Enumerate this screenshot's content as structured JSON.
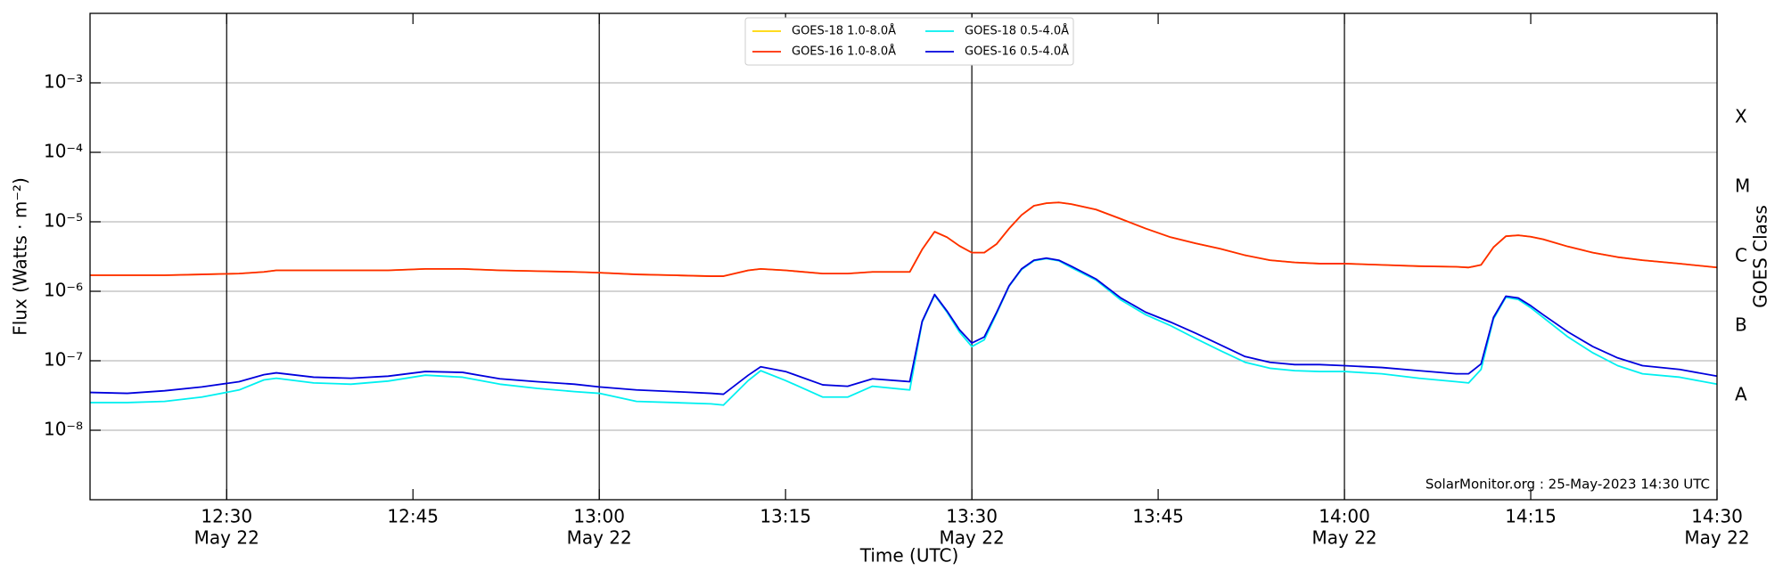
{
  "chart_data": {
    "type": "line",
    "xlabel": "Time (UTC)",
    "ylabel": "Flux (Watts · m⁻²)",
    "y2label": "GOES Class",
    "annotation": "SolarMonitor.org : 25-May-2023 14:30 UTC",
    "ylog": true,
    "grid": true,
    "legend": "top-center",
    "xlim": [
      "12:19",
      "14:30"
    ],
    "xticks": [
      "12:30",
      "12:45",
      "13:00",
      "13:15",
      "13:30",
      "13:45",
      "14:00",
      "14:15",
      "14:30"
    ],
    "xtick_dates": [
      "May 22",
      null,
      "May 22",
      null,
      "May 22",
      null,
      "May 22",
      null,
      "May 22"
    ],
    "vlines": [
      "12:30",
      "13:00",
      "13:30",
      "14:00"
    ],
    "ylim": [
      1e-09,
      0.01
    ],
    "yticks": [
      {
        "value": 1e-08,
        "label": "10⁻⁸"
      },
      {
        "value": 1e-07,
        "label": "10⁻⁷"
      },
      {
        "value": 1e-06,
        "label": "10⁻⁶"
      },
      {
        "value": 1e-05,
        "label": "10⁻⁵"
      },
      {
        "value": 0.0001,
        "label": "10⁻⁴"
      },
      {
        "value": 0.001,
        "label": "10⁻³"
      }
    ],
    "y2lim": [
      1e-09,
      0.01
    ],
    "y2ticks": [
      {
        "value": 3.16e-08,
        "label": "A"
      },
      {
        "value": 3.16e-07,
        "label": "B"
      },
      {
        "value": 3.16e-06,
        "label": "C"
      },
      {
        "value": 3.16e-05,
        "label": "M"
      },
      {
        "value": 0.000316,
        "label": "X"
      }
    ],
    "x": [
      "12:19",
      "12:22",
      "12:25",
      "12:28",
      "12:31",
      "12:33",
      "12:34",
      "12:37",
      "12:40",
      "12:43",
      "12:46",
      "12:49",
      "12:52",
      "12:55",
      "12:58",
      "13:00",
      "13:03",
      "13:06",
      "13:09",
      "13:10",
      "13:12",
      "13:13",
      "13:15",
      "13:18",
      "13:20",
      "13:22",
      "13:25",
      "13:26",
      "13:27",
      "13:28",
      "13:29",
      "13:30",
      "13:31",
      "13:32",
      "13:33",
      "13:34",
      "13:35",
      "13:36",
      "13:37",
      "13:38",
      "13:40",
      "13:42",
      "13:44",
      "13:46",
      "13:48",
      "13:50",
      "13:52",
      "13:54",
      "13:56",
      "13:58",
      "14:00",
      "14:03",
      "14:06",
      "14:09",
      "14:10",
      "14:11",
      "14:12",
      "14:13",
      "14:14",
      "14:15",
      "14:16",
      "14:18",
      "14:20",
      "14:22",
      "14:24",
      "14:27",
      "14:30"
    ],
    "series": [
      {
        "name": "GOES-18 1.0-8.0Å",
        "color": "#ffd700",
        "values": [
          1.7e-06,
          1.7e-06,
          1.7e-06,
          1.75e-06,
          1.8e-06,
          1.9e-06,
          2e-06,
          2e-06,
          2e-06,
          2e-06,
          2.1e-06,
          2.1e-06,
          2e-06,
          1.95e-06,
          1.9e-06,
          1.85e-06,
          1.75e-06,
          1.7e-06,
          1.65e-06,
          1.65e-06,
          2e-06,
          2.1e-06,
          2e-06,
          1.8e-06,
          1.8e-06,
          1.9e-06,
          1.9e-06,
          4e-06,
          7.2e-06,
          6e-06,
          4.5e-06,
          3.6e-06,
          3.6e-06,
          4.8e-06,
          8e-06,
          1.25e-05,
          1.7e-05,
          1.85e-05,
          1.9e-05,
          1.8e-05,
          1.5e-05,
          1.1e-05,
          8e-06,
          6e-06,
          4.9e-06,
          4.1e-06,
          3.3e-06,
          2.8e-06,
          2.6e-06,
          2.5e-06,
          2.5e-06,
          2.4e-06,
          2.3e-06,
          2.25e-06,
          2.2e-06,
          2.4e-06,
          4.3e-06,
          6.2e-06,
          6.4e-06,
          6.1e-06,
          5.6e-06,
          4.4e-06,
          3.6e-06,
          3.1e-06,
          2.8e-06,
          2.5e-06,
          2.2e-06
        ]
      },
      {
        "name": "GOES-16 1.0-8.0Å",
        "color": "#ff2a00",
        "values": [
          1.7e-06,
          1.7e-06,
          1.7e-06,
          1.75e-06,
          1.8e-06,
          1.9e-06,
          2e-06,
          2e-06,
          2e-06,
          2e-06,
          2.1e-06,
          2.1e-06,
          2e-06,
          1.95e-06,
          1.9e-06,
          1.85e-06,
          1.75e-06,
          1.7e-06,
          1.65e-06,
          1.65e-06,
          2e-06,
          2.1e-06,
          2e-06,
          1.8e-06,
          1.8e-06,
          1.9e-06,
          1.9e-06,
          4e-06,
          7.2e-06,
          6e-06,
          4.5e-06,
          3.6e-06,
          3.6e-06,
          4.8e-06,
          8e-06,
          1.25e-05,
          1.7e-05,
          1.85e-05,
          1.9e-05,
          1.8e-05,
          1.5e-05,
          1.1e-05,
          8e-06,
          6e-06,
          4.9e-06,
          4.1e-06,
          3.3e-06,
          2.8e-06,
          2.6e-06,
          2.5e-06,
          2.5e-06,
          2.4e-06,
          2.3e-06,
          2.25e-06,
          2.2e-06,
          2.4e-06,
          4.3e-06,
          6.2e-06,
          6.4e-06,
          6.1e-06,
          5.6e-06,
          4.4e-06,
          3.6e-06,
          3.1e-06,
          2.8e-06,
          2.5e-06,
          2.2e-06
        ]
      },
      {
        "name": "GOES-18 0.5-4.0Å",
        "color": "#00f0f0",
        "values": [
          2.5e-08,
          2.5e-08,
          2.6e-08,
          3e-08,
          3.8e-08,
          5.3e-08,
          5.6e-08,
          4.8e-08,
          4.6e-08,
          5.1e-08,
          6.2e-08,
          5.8e-08,
          4.6e-08,
          4e-08,
          3.6e-08,
          3.4e-08,
          2.6e-08,
          2.5e-08,
          2.4e-08,
          2.3e-08,
          5.2e-08,
          7.2e-08,
          5.2e-08,
          3e-08,
          3e-08,
          4.3e-08,
          3.8e-08,
          3.6e-07,
          8.8e-07,
          5e-07,
          2.6e-07,
          1.6e-07,
          2e-07,
          4.8e-07,
          1.18e-06,
          2.05e-06,
          2.75e-06,
          2.95e-06,
          2.75e-06,
          2.2e-06,
          1.45e-06,
          7.5e-07,
          4.6e-07,
          3.2e-07,
          2.1e-07,
          1.4e-07,
          9.5e-08,
          7.8e-08,
          7.2e-08,
          7e-08,
          7e-08,
          6.5e-08,
          5.6e-08,
          5e-08,
          4.8e-08,
          7.5e-08,
          4e-07,
          8.2e-07,
          7.6e-07,
          5.8e-07,
          4.2e-07,
          2.2e-07,
          1.3e-07,
          8.5e-08,
          6.5e-08,
          5.8e-08,
          4.6e-08
        ]
      },
      {
        "name": "GOES-16 0.5-4.0Å",
        "color": "#0000dd",
        "values": [
          3.5e-08,
          3.4e-08,
          3.7e-08,
          4.2e-08,
          5e-08,
          6.3e-08,
          6.7e-08,
          5.8e-08,
          5.6e-08,
          6e-08,
          7e-08,
          6.8e-08,
          5.5e-08,
          5e-08,
          4.6e-08,
          4.2e-08,
          3.8e-08,
          3.6e-08,
          3.4e-08,
          3.3e-08,
          6.2e-08,
          8.2e-08,
          7e-08,
          4.5e-08,
          4.3e-08,
          5.5e-08,
          5e-08,
          3.7e-07,
          9e-07,
          5.2e-07,
          2.8e-07,
          1.8e-07,
          2.2e-07,
          5e-07,
          1.2e-06,
          2.1e-06,
          2.8e-06,
          3e-06,
          2.8e-06,
          2.3e-06,
          1.5e-06,
          8e-07,
          5e-07,
          3.6e-07,
          2.5e-07,
          1.7e-07,
          1.15e-07,
          9.5e-08,
          8.8e-08,
          8.8e-08,
          8.5e-08,
          8e-08,
          7.2e-08,
          6.5e-08,
          6.5e-08,
          9e-08,
          4.2e-07,
          8.5e-07,
          8e-07,
          6.2e-07,
          4.6e-07,
          2.6e-07,
          1.6e-07,
          1.1e-07,
          8.5e-08,
          7.5e-08,
          6e-08
        ]
      }
    ]
  }
}
